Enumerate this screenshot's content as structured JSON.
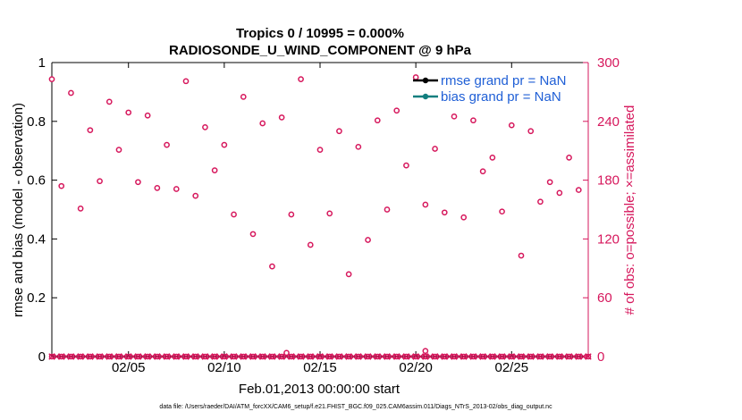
{
  "chart_data": {
    "type": "scatter",
    "title": "Tropics 0 / 10995 = 0.000%",
    "subtitle": "RADIOSONDE_U_WIND_COMPONENT @ 9 hPa",
    "xlabel": "Feb.01,2013 00:00:00 start",
    "ylabel_left": "rmse and bias (model - observation)",
    "ylabel_right": "# of obs: o=possible; ×=assimilated",
    "footer": "data file: /Users/raeder/DAI/ATM_forcXX/CAM6_setup/f.e21.FHIST_BGC.f09_025.CAM6assim.011/Diags_NTrS_2013-02/obs_diag_output.nc",
    "x_tick_labels": [
      "02/05",
      "02/10",
      "02/15",
      "02/20",
      "02/25"
    ],
    "x_tick_days": [
      5,
      10,
      15,
      20,
      25
    ],
    "xlim_days": [
      1,
      29
    ],
    "ylim_left": [
      0,
      1
    ],
    "yticks_left": [
      "0",
      "0.2",
      "0.4",
      "0.6",
      "0.8",
      "1"
    ],
    "ylim_right": [
      0,
      300
    ],
    "yticks_right": [
      "0",
      "60",
      "120",
      "180",
      "240",
      "300"
    ],
    "legend": {
      "position": "top-right",
      "entries": [
        "rmse grand pr = NaN",
        "bias grand pr = NaN"
      ]
    },
    "colors": {
      "obs": "#d6175c",
      "rmse": "#000000",
      "bias": "#127f7f",
      "legend_text": "#1f5fd6",
      "axis": "#000000"
    },
    "series": [
      {
        "name": "possible",
        "marker": "o",
        "points": [
          {
            "x": 1.0,
            "y": 283
          },
          {
            "x": 1.5,
            "y": 174
          },
          {
            "x": 2.0,
            "y": 269
          },
          {
            "x": 2.5,
            "y": 151
          },
          {
            "x": 3.0,
            "y": 231
          },
          {
            "x": 3.5,
            "y": 179
          },
          {
            "x": 4.0,
            "y": 260
          },
          {
            "x": 4.5,
            "y": 211
          },
          {
            "x": 5.0,
            "y": 249
          },
          {
            "x": 5.5,
            "y": 178
          },
          {
            "x": 6.0,
            "y": 246
          },
          {
            "x": 6.5,
            "y": 172
          },
          {
            "x": 7.0,
            "y": 216
          },
          {
            "x": 7.5,
            "y": 171
          },
          {
            "x": 8.0,
            "y": 281
          },
          {
            "x": 8.5,
            "y": 164
          },
          {
            "x": 9.0,
            "y": 234
          },
          {
            "x": 9.5,
            "y": 190
          },
          {
            "x": 10.0,
            "y": 216
          },
          {
            "x": 10.5,
            "y": 145
          },
          {
            "x": 11.0,
            "y": 265
          },
          {
            "x": 11.5,
            "y": 125
          },
          {
            "x": 12.0,
            "y": 238
          },
          {
            "x": 12.5,
            "y": 92
          },
          {
            "x": 13.0,
            "y": 244
          },
          {
            "x": 13.5,
            "y": 145
          },
          {
            "x": 14.0,
            "y": 283
          },
          {
            "x": 14.5,
            "y": 114
          },
          {
            "x": 15.0,
            "y": 211
          },
          {
            "x": 15.5,
            "y": 146
          },
          {
            "x": 16.0,
            "y": 230
          },
          {
            "x": 16.5,
            "y": 84
          },
          {
            "x": 17.0,
            "y": 214
          },
          {
            "x": 17.5,
            "y": 119
          },
          {
            "x": 18.0,
            "y": 241
          },
          {
            "x": 18.5,
            "y": 150
          },
          {
            "x": 19.0,
            "y": 251
          },
          {
            "x": 19.5,
            "y": 195
          },
          {
            "x": 20.0,
            "y": 285
          },
          {
            "x": 20.5,
            "y": 155
          },
          {
            "x": 21.0,
            "y": 212
          },
          {
            "x": 21.5,
            "y": 147
          },
          {
            "x": 22.0,
            "y": 245
          },
          {
            "x": 22.5,
            "y": 142
          },
          {
            "x": 23.0,
            "y": 241
          },
          {
            "x": 23.5,
            "y": 189
          },
          {
            "x": 24.0,
            "y": 203
          },
          {
            "x": 24.5,
            "y": 148
          },
          {
            "x": 25.0,
            "y": 236
          },
          {
            "x": 25.5,
            "y": 103
          },
          {
            "x": 26.0,
            "y": 230
          },
          {
            "x": 26.5,
            "y": 158
          },
          {
            "x": 27.0,
            "y": 178
          },
          {
            "x": 27.5,
            "y": 167
          },
          {
            "x": 28.0,
            "y": 203
          },
          {
            "x": 28.5,
            "y": 170
          }
        ]
      },
      {
        "name": "assimilated",
        "marker": "x",
        "y_all": 0
      },
      {
        "name": "rmse grand pr = NaN",
        "values": []
      },
      {
        "name": "bias grand pr = NaN",
        "values": []
      }
    ],
    "grid": false
  }
}
